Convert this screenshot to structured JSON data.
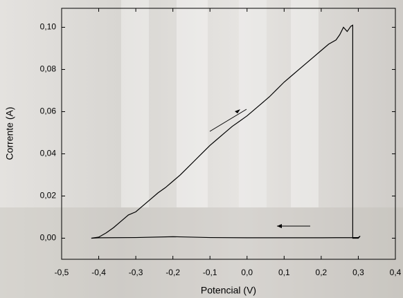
{
  "chart_data": {
    "type": "line",
    "x_label": "Potencial (V)",
    "y_label": "Corrente (A)",
    "x": [
      -0.42,
      -0.4,
      -0.38,
      -0.36,
      -0.34,
      -0.32,
      -0.3,
      -0.28,
      -0.26,
      -0.24,
      -0.22,
      -0.2,
      -0.18,
      -0.16,
      -0.14,
      -0.12,
      -0.1,
      -0.08,
      -0.06,
      -0.04,
      -0.02,
      0.0,
      0.02,
      0.04,
      0.06,
      0.08,
      0.1,
      0.12,
      0.14,
      0.16,
      0.18,
      0.2,
      0.22,
      0.24,
      0.25,
      0.26,
      0.27,
      0.28,
      0.285,
      0.285,
      0.3,
      0.305,
      0.3,
      0.2,
      0.1,
      0.0,
      -0.1,
      -0.2,
      -0.3,
      -0.4,
      -0.42
    ],
    "values": [
      0,
      0.0005,
      0.0025,
      0.005,
      0.008,
      0.011,
      0.0125,
      0.0155,
      0.0185,
      0.0215,
      0.024,
      0.027,
      0.03,
      0.0335,
      0.037,
      0.0405,
      0.044,
      0.047,
      0.05,
      0.053,
      0.0555,
      0.058,
      0.061,
      0.064,
      0.067,
      0.0705,
      0.074,
      0.077,
      0.08,
      0.083,
      0.086,
      0.089,
      0.092,
      0.094,
      0.0965,
      0.1,
      0.098,
      0.1005,
      0.101,
      0.0,
      0.0,
      0.001,
      0.0003,
      0.0002,
      0.0002,
      0.0002,
      0.0003,
      0.0007,
      0.0003,
      0.0002,
      0.0
    ],
    "color": "#000000",
    "xlim": [
      -0.5,
      0.4
    ],
    "xticks": [
      {
        "value": -0.5,
        "label": "-0,5"
      },
      {
        "value": -0.4,
        "label": "-0,4"
      },
      {
        "value": -0.3,
        "label": "-0,3"
      },
      {
        "value": -0.2,
        "label": "-0,2"
      },
      {
        "value": -0.1,
        "label": "-0,1"
      },
      {
        "value": 0.0,
        "label": "0,0"
      },
      {
        "value": 0.1,
        "label": "0,1"
      },
      {
        "value": 0.2,
        "label": "0,2"
      },
      {
        "value": 0.3,
        "label": "0,3"
      },
      {
        "value": 0.4,
        "label": "0,4"
      }
    ],
    "ylim": [
      -0.01,
      0.109
    ],
    "yticks": [
      {
        "value": 0.0,
        "label": "0,00"
      },
      {
        "value": 0.02,
        "label": "0,02"
      },
      {
        "value": 0.04,
        "label": "0,04"
      },
      {
        "value": 0.06,
        "label": "0,06"
      },
      {
        "value": 0.08,
        "label": "0,08"
      },
      {
        "value": 0.1,
        "label": "0,10"
      }
    ],
    "grid": false
  }
}
